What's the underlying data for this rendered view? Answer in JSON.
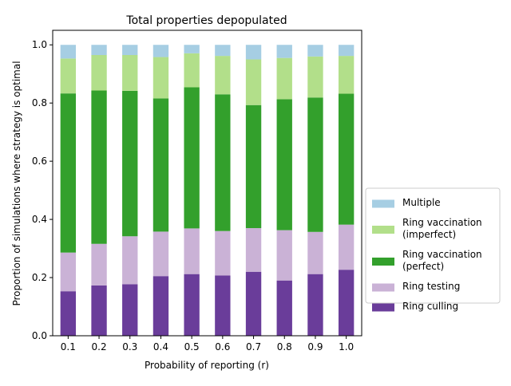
{
  "chart_data": {
    "type": "bar",
    "stacked": true,
    "title": "Total properties depopulated",
    "xlabel": "Probability of reporting (r)",
    "ylabel": "Proportion of simulations where strategy is optimal",
    "categories": [
      "0.1",
      "0.2",
      "0.3",
      "0.4",
      "0.5",
      "0.6",
      "0.7",
      "0.8",
      "0.9",
      "1.0"
    ],
    "ylim": [
      0,
      1.05
    ],
    "yticks": [
      "0.0",
      "0.2",
      "0.4",
      "0.6",
      "0.8",
      "1.0"
    ],
    "legend_position": "center-right",
    "grid": false,
    "series": [
      {
        "name": "Ring culling",
        "color": "#6a3d9a",
        "values": [
          0.153,
          0.173,
          0.177,
          0.205,
          0.212,
          0.207,
          0.22,
          0.19,
          0.212,
          0.227
        ]
      },
      {
        "name": "Ring testing",
        "color": "#cab2d6",
        "values": [
          0.133,
          0.143,
          0.165,
          0.153,
          0.157,
          0.153,
          0.15,
          0.173,
          0.145,
          0.155
        ]
      },
      {
        "name": "Ring vaccination\n(perfect)",
        "color": "#33a02c",
        "values": [
          0.547,
          0.527,
          0.5,
          0.458,
          0.485,
          0.47,
          0.423,
          0.45,
          0.462,
          0.45
        ]
      },
      {
        "name": "Ring vaccination\n(imperfect)",
        "color": "#b2df8a",
        "values": [
          0.12,
          0.122,
          0.123,
          0.142,
          0.117,
          0.132,
          0.157,
          0.142,
          0.141,
          0.13
        ]
      },
      {
        "name": "Multiple",
        "color": "#a6cee3",
        "values": [
          0.047,
          0.035,
          0.035,
          0.042,
          0.029,
          0.038,
          0.05,
          0.045,
          0.04,
          0.038
        ]
      }
    ],
    "legend_order": [
      4,
      3,
      2,
      1,
      0
    ]
  }
}
